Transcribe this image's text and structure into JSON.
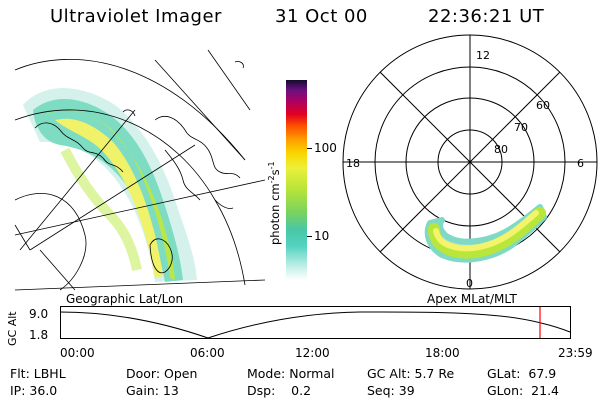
{
  "header": {
    "instrument": "Ultraviolet Imager",
    "date": "31 Oct 00",
    "time": "22:36:21 UT"
  },
  "colorbar": {
    "unit_label": "photon cm",
    "unit_sup1": "-2",
    "unit_mid": "s",
    "unit_sup2": "-1",
    "ticks": [
      "100",
      "10"
    ]
  },
  "polar_plot": {
    "mlt_labels": [
      "12",
      "18",
      "6",
      "0"
    ],
    "lat_labels": [
      "60",
      "70",
      "80"
    ]
  },
  "map_captions": {
    "left": "Geographic Lat/Lon",
    "right": "Apex MLat/MLT"
  },
  "altitude_plot": {
    "ylabel": "GC Alt",
    "yticks": [
      "9.0",
      "1.8"
    ],
    "xticks": [
      "00:00",
      "06:00",
      "12:00",
      "18:00",
      "23:59"
    ]
  },
  "colors": {
    "aurora_low": "#5fd8c4",
    "aurora_mid": "#b8e63a",
    "aurora_high": "#f5f56a",
    "marker": "#ff0000"
  },
  "info": {
    "flt": "Flt: LBHL",
    "ip": "IP: 36.0",
    "door": "Door: Open",
    "gain": "Gain: 13",
    "mode": "Mode: Normal",
    "dsp": "Dsp:    0.2",
    "gcalt": "GC Alt: 5.7 Re",
    "seq": "Seq: 39",
    "glat": "GLat:  67.9",
    "glon": "GLon:  21.4"
  }
}
